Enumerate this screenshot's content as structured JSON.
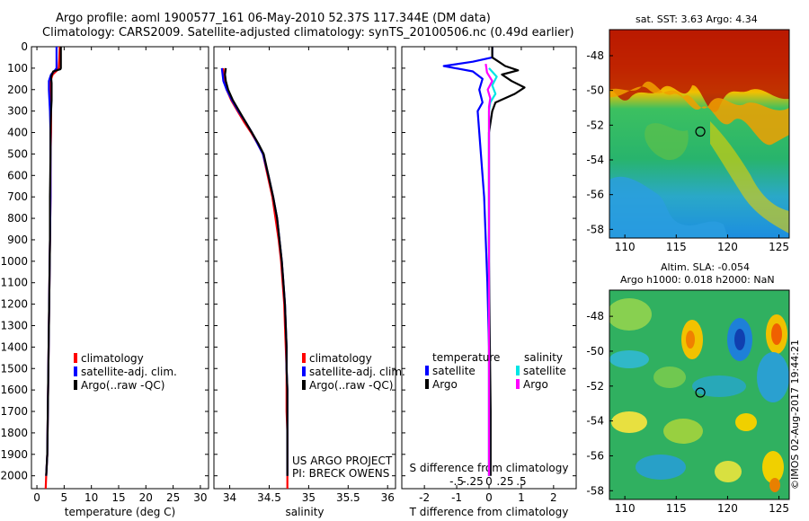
{
  "header": {
    "title_line1": "Argo profile: aoml 1900577_161 06-May-2010 52.37S 117.344E (DM data)",
    "title_line2": "Climatology: CARS2009. Satellite-adjusted climatology: synTS_20100506.nc (0.49d earlier)"
  },
  "depth_axis": {
    "ticks": [
      0,
      100,
      200,
      300,
      400,
      500,
      600,
      700,
      800,
      900,
      1000,
      1100,
      1200,
      1300,
      1400,
      1500,
      1600,
      1700,
      1800,
      1900,
      2000
    ],
    "min": 0,
    "max": 2060
  },
  "colors": {
    "climatology": "#ff0000",
    "satellite_adj": "#0000ff",
    "argo": "#000000",
    "sat_salinity": "#00e5e5",
    "argo_salinity": "#ff00ff"
  },
  "chart_data": [
    {
      "type": "line",
      "id": "temperature",
      "xlabel": "temperature (deg C)",
      "xlim": [
        -1,
        31.5
      ],
      "xticks": [
        0,
        5,
        10,
        15,
        20,
        25,
        30
      ],
      "legend": [
        "climatology",
        "satellite-adj. clim.",
        "Argo(..raw -QC)"
      ],
      "series": [
        {
          "name": "climatology",
          "color": "#ff0000",
          "points": [
            [
              4.2,
              0
            ],
            [
              4.1,
              60
            ],
            [
              4.0,
              100
            ],
            [
              3.7,
              110
            ],
            [
              2.9,
              130
            ],
            [
              2.5,
              160
            ],
            [
              2.4,
              200
            ],
            [
              2.5,
              250
            ],
            [
              2.6,
              300
            ],
            [
              2.6,
              400
            ],
            [
              2.5,
              500
            ],
            [
              2.5,
              700
            ],
            [
              2.4,
              900
            ],
            [
              2.3,
              1100
            ],
            [
              2.2,
              1300
            ],
            [
              2.1,
              1500
            ],
            [
              2.0,
              1700
            ],
            [
              1.9,
              1900
            ],
            [
              1.7,
              2000
            ],
            [
              1.6,
              2060
            ]
          ]
        },
        {
          "name": "satellite-adj. clim.",
          "color": "#0000ff",
          "points": [
            [
              3.6,
              0
            ],
            [
              3.6,
              60
            ],
            [
              3.6,
              100
            ],
            [
              3.3,
              110
            ],
            [
              2.6,
              130
            ],
            [
              2.2,
              160
            ],
            [
              2.2,
              200
            ],
            [
              2.3,
              250
            ],
            [
              2.4,
              300
            ],
            [
              2.5,
              400
            ],
            [
              2.5,
              500
            ],
            [
              2.5,
              700
            ],
            [
              2.4,
              900
            ],
            [
              2.3,
              1100
            ],
            [
              2.2,
              1300
            ],
            [
              2.1,
              1500
            ],
            [
              2.0,
              1700
            ],
            [
              1.9,
              1900
            ],
            [
              1.7,
              2000
            ]
          ]
        },
        {
          "name": "Argo(..raw -QC)",
          "color": "#000000",
          "points": [
            [
              4.4,
              0
            ],
            [
              4.4,
              60
            ],
            [
              4.4,
              100
            ],
            [
              4.3,
              105
            ],
            [
              3.0,
              115
            ],
            [
              2.6,
              140
            ],
            [
              2.7,
              170
            ],
            [
              2.7,
              200
            ],
            [
              2.7,
              250
            ],
            [
              2.6,
              300
            ],
            [
              2.5,
              400
            ],
            [
              2.5,
              500
            ],
            [
              2.4,
              700
            ],
            [
              2.4,
              900
            ],
            [
              2.3,
              1100
            ],
            [
              2.2,
              1300
            ],
            [
              2.1,
              1500
            ],
            [
              2.0,
              1700
            ],
            [
              1.9,
              1900
            ],
            [
              1.7,
              2000
            ]
          ]
        }
      ]
    },
    {
      "type": "line",
      "id": "salinity",
      "xlabel": "salinity",
      "xlim": [
        33.8,
        36.1
      ],
      "xticks": [
        34,
        34.5,
        35,
        35.5,
        36
      ],
      "legend": [
        "climatology",
        "satellite-adj. clim.",
        "Argo(..raw -QC)"
      ],
      "series": [
        {
          "name": "climatology",
          "color": "#ff0000",
          "points": [
            [
              33.92,
              100
            ],
            [
              33.93,
              160
            ],
            [
              33.96,
              200
            ],
            [
              34.02,
              250
            ],
            [
              34.1,
              300
            ],
            [
              34.18,
              350
            ],
            [
              34.27,
              400
            ],
            [
              34.35,
              450
            ],
            [
              34.42,
              500
            ],
            [
              34.48,
              600
            ],
            [
              34.54,
              700
            ],
            [
              34.58,
              800
            ],
            [
              34.62,
              900
            ],
            [
              34.65,
              1000
            ],
            [
              34.67,
              1100
            ],
            [
              34.69,
              1200
            ],
            [
              34.7,
              1300
            ],
            [
              34.71,
              1400
            ],
            [
              34.72,
              1500
            ],
            [
              34.72,
              1600
            ],
            [
              34.72,
              1700
            ],
            [
              34.73,
              1800
            ],
            [
              34.73,
              1900
            ],
            [
              34.73,
              2000
            ],
            [
              34.73,
              2060
            ]
          ]
        },
        {
          "name": "satellite-adj. clim.",
          "color": "#0000ff",
          "points": [
            [
              33.9,
              100
            ],
            [
              33.92,
              160
            ],
            [
              33.96,
              200
            ],
            [
              34.03,
              250
            ],
            [
              34.11,
              300
            ],
            [
              34.2,
              350
            ],
            [
              34.28,
              400
            ],
            [
              34.35,
              450
            ],
            [
              34.42,
              500
            ],
            [
              34.49,
              600
            ],
            [
              34.55,
              700
            ],
            [
              34.6,
              800
            ],
            [
              34.63,
              900
            ],
            [
              34.66,
              1000
            ],
            [
              34.68,
              1100
            ],
            [
              34.7,
              1200
            ],
            [
              34.71,
              1300
            ],
            [
              34.72,
              1400
            ],
            [
              34.72,
              1500
            ],
            [
              34.73,
              1600
            ],
            [
              34.73,
              1700
            ],
            [
              34.73,
              1800
            ],
            [
              34.73,
              1900
            ],
            [
              34.73,
              2000
            ]
          ]
        },
        {
          "name": "Argo(..raw -QC)",
          "color": "#000000",
          "points": [
            [
              33.95,
              100
            ],
            [
              33.94,
              130
            ],
            [
              33.95,
              160
            ],
            [
              33.98,
              200
            ],
            [
              34.04,
              250
            ],
            [
              34.12,
              300
            ],
            [
              34.2,
              350
            ],
            [
              34.28,
              400
            ],
            [
              34.36,
              450
            ],
            [
              34.43,
              500
            ],
            [
              34.49,
              600
            ],
            [
              34.55,
              700
            ],
            [
              34.6,
              800
            ],
            [
              34.63,
              900
            ],
            [
              34.66,
              1000
            ],
            [
              34.68,
              1100
            ],
            [
              34.7,
              1200
            ],
            [
              34.71,
              1300
            ],
            [
              34.72,
              1400
            ],
            [
              34.72,
              1500
            ],
            [
              34.73,
              1600
            ],
            [
              34.73,
              1700
            ],
            [
              34.73,
              1800
            ],
            [
              34.73,
              1900
            ],
            [
              34.73,
              2000
            ]
          ]
        }
      ],
      "credit": [
        "US ARGO PROJECT",
        "PI: BRECK OWENS"
      ]
    },
    {
      "type": "line",
      "id": "difference",
      "xlabel": "T difference from climatology",
      "xlabel_top": "S difference from climatology",
      "xlim": [
        -2.7,
        2.7
      ],
      "xticks": [
        -2,
        -1,
        0,
        1,
        2
      ],
      "sticks": [
        -0.5,
        -0.25,
        0,
        0.25,
        0.5
      ],
      "legend_titles": [
        "temperature",
        "salinity"
      ],
      "legend": [
        "satellite",
        "Argo",
        "satellite",
        "Argo"
      ],
      "series": [
        {
          "name": "satellite",
          "group": "temperature",
          "color": "#0000ff",
          "points": [
            [
              0.1,
              0
            ],
            [
              0.1,
              50
            ],
            [
              -0.5,
              70
            ],
            [
              -1.4,
              90
            ],
            [
              -0.5,
              115
            ],
            [
              -0.2,
              150
            ],
            [
              -0.3,
              200
            ],
            [
              -0.2,
              260
            ],
            [
              -0.35,
              300
            ],
            [
              -0.3,
              400
            ],
            [
              -0.25,
              500
            ],
            [
              -0.15,
              700
            ],
            [
              -0.1,
              900
            ],
            [
              -0.05,
              1100
            ],
            [
              0,
              1400
            ],
            [
              0,
              1700
            ],
            [
              0,
              2000
            ]
          ]
        },
        {
          "name": "Argo",
          "group": "temperature",
          "color": "#000000",
          "points": [
            [
              0.1,
              0
            ],
            [
              0.1,
              50
            ],
            [
              0.3,
              70
            ],
            [
              0.5,
              90
            ],
            [
              0.9,
              110
            ],
            [
              0.4,
              130
            ],
            [
              0.7,
              160
            ],
            [
              1.1,
              190
            ],
            [
              0.8,
              220
            ],
            [
              0.2,
              260
            ],
            [
              0.1,
              300
            ],
            [
              0,
              400
            ],
            [
              0,
              600
            ],
            [
              0,
              1000
            ],
            [
              0.02,
              1300
            ],
            [
              0.05,
              1700
            ],
            [
              0.05,
              2000
            ]
          ]
        },
        {
          "name": "satellite",
          "group": "salinity",
          "color": "#00e5e5",
          "points": [
            [
              0,
              100
            ],
            [
              0.12,
              140
            ],
            [
              0.05,
              180
            ],
            [
              0.1,
              220
            ],
            [
              0.02,
              260
            ],
            [
              0,
              300
            ],
            [
              0,
              700
            ],
            [
              0,
              1200
            ],
            [
              0,
              1700
            ],
            [
              0,
              2000
            ]
          ]
        },
        {
          "name": "Argo",
          "group": "salinity",
          "color": "#ff00ff",
          "points": [
            [
              -0.05,
              80
            ],
            [
              -0.03,
              120
            ],
            [
              0.05,
              160
            ],
            [
              -0.02,
              200
            ],
            [
              0.02,
              240
            ],
            [
              0,
              280
            ],
            [
              0,
              400
            ],
            [
              0,
              900
            ],
            [
              0,
              1500
            ],
            [
              0,
              2000
            ]
          ]
        }
      ]
    }
  ],
  "maps": [
    {
      "id": "sst",
      "title": "sat. SST: 3.63  Argo: 4.34",
      "xticks": [
        110,
        115,
        120,
        125
      ],
      "yticks": [
        -48,
        -50,
        -52,
        -54,
        -56,
        -58
      ],
      "xlim": [
        108.5,
        126
      ],
      "ylim": [
        -58.5,
        -46.5
      ],
      "marker": [
        117.344,
        -52.37
      ]
    },
    {
      "id": "sla",
      "title": "Altim. SLA: -0.054",
      "subtitle": "Argo h1000: 0.018 h2000: NaN",
      "xticks": [
        110,
        115,
        120,
        125
      ],
      "yticks": [
        -48,
        -50,
        -52,
        -54,
        -56,
        -58
      ],
      "xlim": [
        108.5,
        126
      ],
      "ylim": [
        -58.5,
        -46.5
      ],
      "marker": [
        117.344,
        -52.37
      ]
    }
  ],
  "watermark": "©IMOS 02-Aug-2017 19:44:21"
}
